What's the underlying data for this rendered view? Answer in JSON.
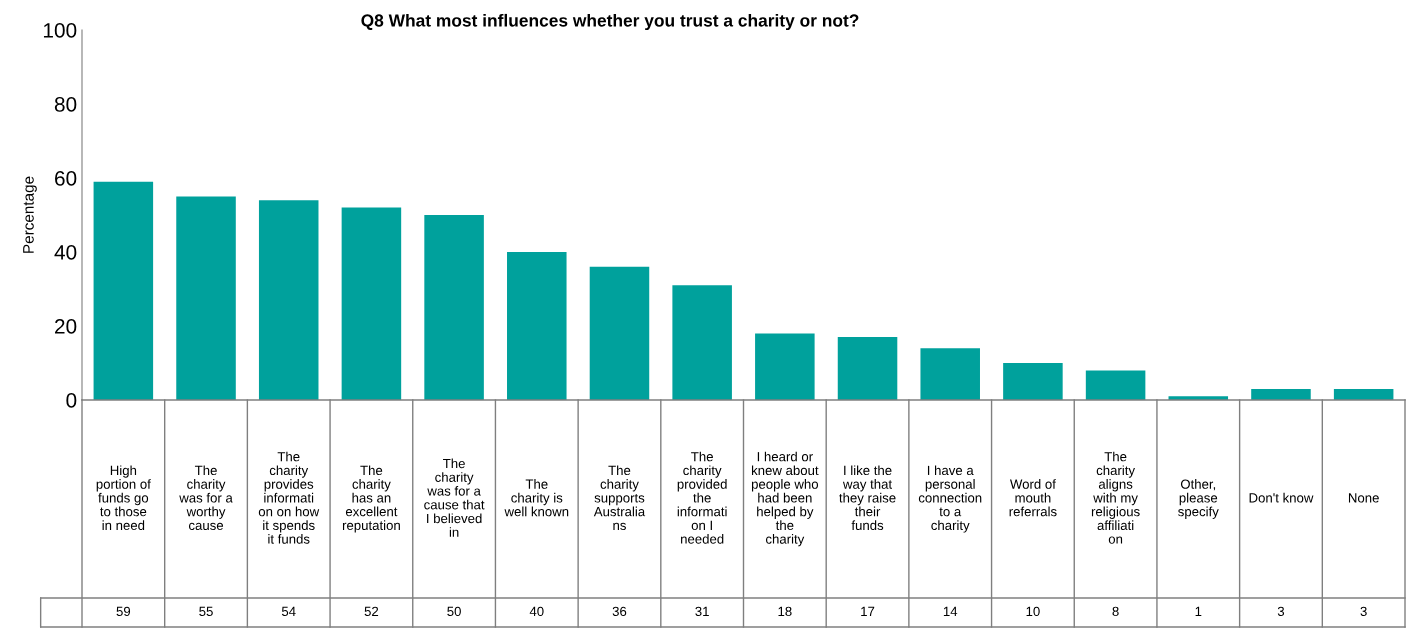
{
  "chart_data": {
    "type": "bar",
    "title": "Q8 What most influences whether you trust a charity or not?",
    "ylabel": "Percentage",
    "categories": [
      "High portion of funds go to those in need",
      "The charity was for a worthy cause",
      "The charity provides information on how it spends it funds",
      "The charity has an excellent reputation",
      "The charity was for a cause that I believed in",
      "The charity is well known",
      "The charity supports Australians",
      "The charity provided the information I needed",
      "I heard or knew about people who had been helped by the charity",
      "I like the way that they raise their funds",
      "I have a personal connection to a charity",
      "Word of mouth referrals",
      "The charity aligns with my religious affiliation",
      "Other, please specify",
      "Don't know",
      "None"
    ],
    "values": [
      59,
      55,
      54,
      52,
      50,
      40,
      36,
      31,
      18,
      17,
      14,
      10,
      8,
      1,
      3,
      3
    ],
    "color": "#00a19c",
    "ylim": [
      0,
      100
    ],
    "yticks": [
      0,
      20,
      40,
      60,
      80,
      100
    ],
    "grid": false,
    "data_labels": true
  }
}
